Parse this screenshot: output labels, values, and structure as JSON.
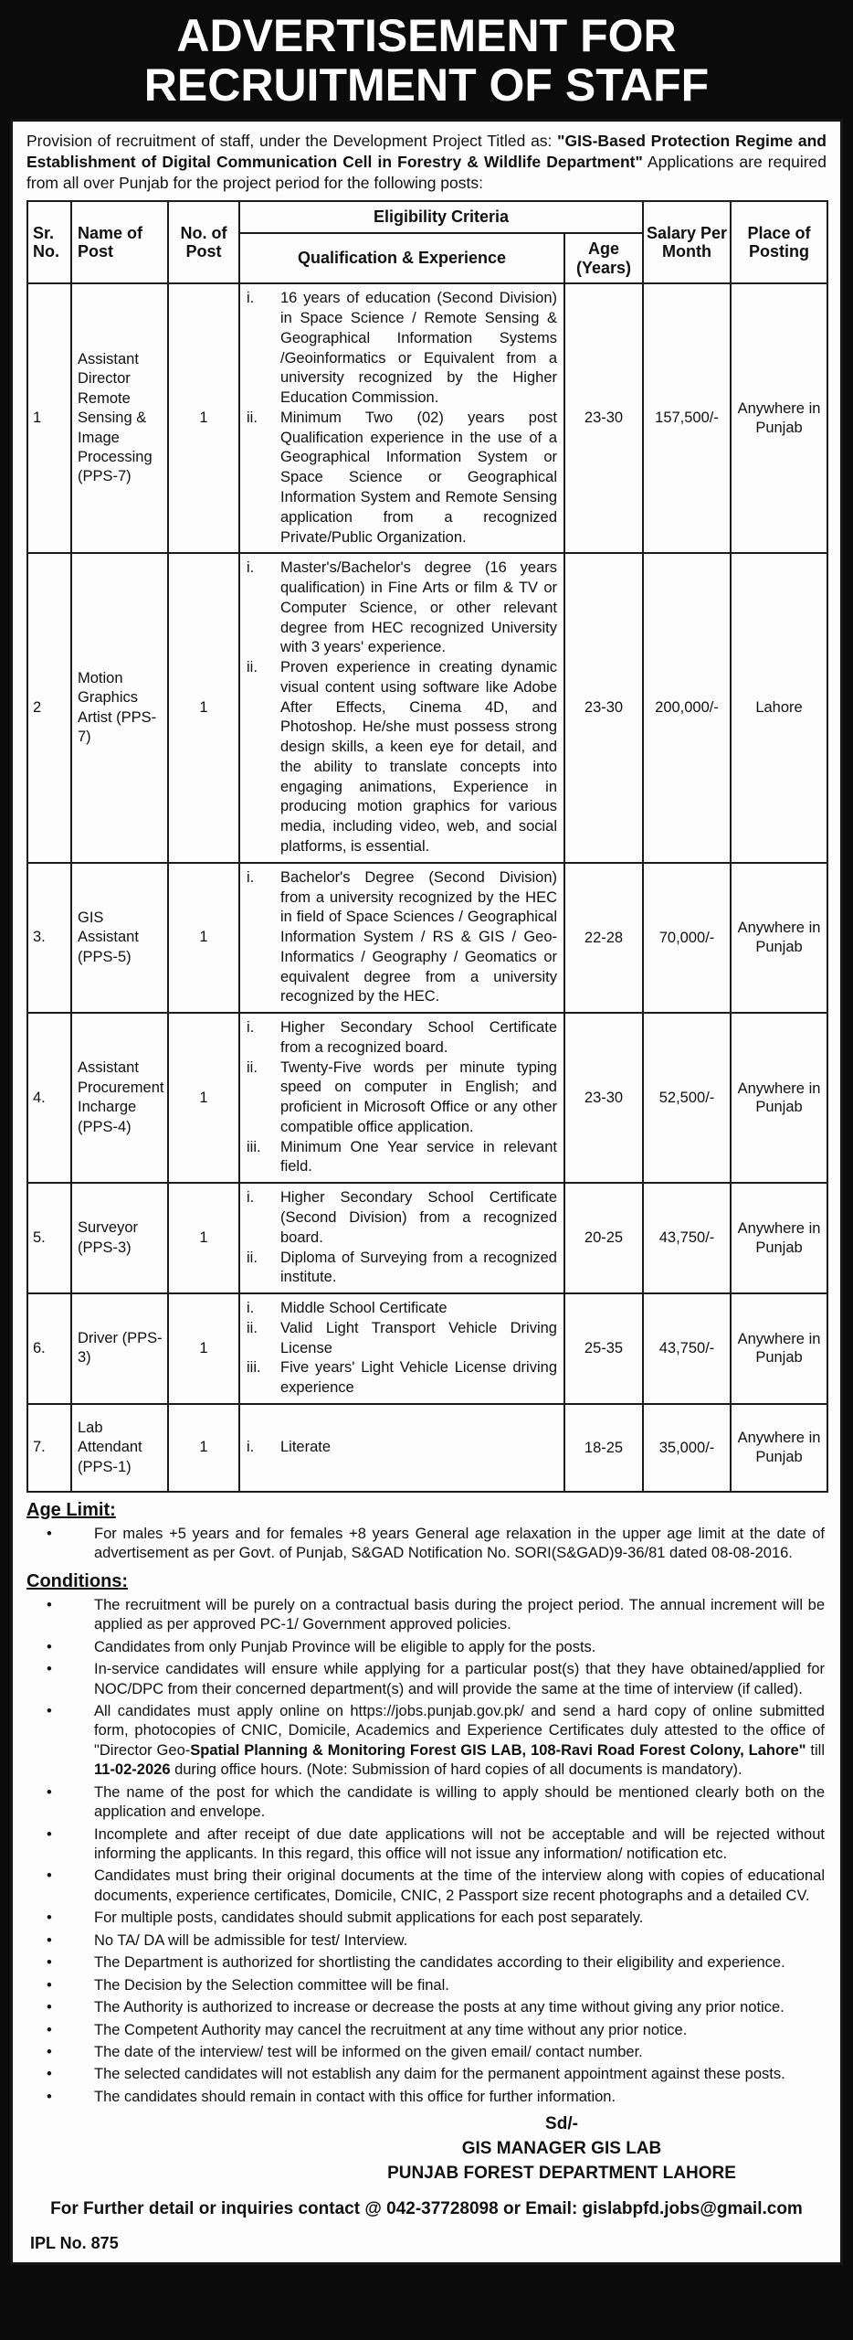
{
  "colors": {
    "band_bg": "#0b0b0b",
    "band_text": "#ffffff",
    "paper_bg": "#fdfdfd",
    "ink": "#101010"
  },
  "bullet_glyph": "•",
  "header": {
    "title_line1": "ADVERTISEMENT FOR",
    "title_line2": "RECRUITMENT OF STAFF"
  },
  "intro": {
    "pre": "Provision of recruitment of staff, under the Development Project Titled as: ",
    "bold_title": "\"GIS-Based Protection Regime and Establishment of Digital Communication Cell in Forestry & Wildlife Department\"",
    "post": " Applications are required from all over Punjab for the project period for the following posts:"
  },
  "table": {
    "headers": {
      "sr": "Sr. No.",
      "name": "Name of Post",
      "count": "No. of Post",
      "eligibility": "Eligibility Criteria",
      "qualification": "Qualification & Experience",
      "age": "Age (Years)",
      "salary": "Salary Per Month",
      "place": "Place of Posting"
    },
    "roman_numerals": [
      "i.",
      "ii.",
      "iii."
    ],
    "rows": [
      {
        "sr": "1",
        "post": "Assistant Director Remote Sensing & Image Processing (PPS-7)",
        "count": "1",
        "qualifications": [
          "16 years of education (Second Division) in Space Science / Remote Sensing & Geographical Information Systems /Geoinformatics or Equivalent from a university recognized by the Higher Education Commission.",
          "Minimum Two (02) years post Qualification experience in the use of a Geographical Information System or Space Science or Geographical Information System and Remote Sensing application from a recognized Private/Public Organization."
        ],
        "age": "23-30",
        "salary": "157,500/-",
        "place": "Anywhere in Punjab"
      },
      {
        "sr": "2",
        "post": "Motion Graphics Artist (PPS-7)",
        "count": "1",
        "qualifications": [
          "Master's/Bachelor's degree (16 years qualification) in Fine Arts or film & TV or Computer Science, or other relevant degree from HEC recognized University with 3 years' experience.",
          "Proven experience in creating dynamic visual content using software like Adobe After Effects, Cinema 4D, and Photoshop. He/she must possess strong design skills, a keen eye for detail, and the ability to translate concepts into engaging animations, Experience in producing motion graphics for various media, including video, web, and social platforms, is essential."
        ],
        "age": "23-30",
        "salary": "200,000/-",
        "place": "Lahore"
      },
      {
        "sr": "3.",
        "post": "GIS Assistant (PPS-5)",
        "count": "1",
        "qualifications": [
          "Bachelor's Degree (Second Division) from a university recognized by the HEC in field of Space Sciences / Geographical Information System / RS & GIS / Geo-Informatics / Geography / Geomatics or equivalent degree from a university recognized by the HEC."
        ],
        "age": "22-28",
        "salary": "70,000/-",
        "place": "Anywhere in Punjab"
      },
      {
        "sr": "4.",
        "post": "Assistant Procurement Incharge (PPS-4)",
        "count": "1",
        "qualifications": [
          "Higher Secondary School Certificate from a recognized board.",
          "Twenty-Five words per minute typing speed on computer in English; and proficient in Microsoft Office or any other compatible office application.",
          "Minimum One Year service in relevant field."
        ],
        "age": "23-30",
        "salary": "52,500/-",
        "place": "Anywhere in Punjab"
      },
      {
        "sr": "5.",
        "post": "Surveyor (PPS-3)",
        "count": "1",
        "qualifications": [
          "Higher Secondary School Certificate (Second Division) from a recognized board.",
          "Diploma of Surveying from a recognized institute."
        ],
        "age": "20-25",
        "salary": "43,750/-",
        "place": "Anywhere in Punjab"
      },
      {
        "sr": "6.",
        "post": "Driver (PPS-3)",
        "count": "1",
        "qualifications": [
          "Middle School Certificate",
          "Valid Light Transport Vehicle Driving License",
          "Five years' Light Vehicle License driving experience"
        ],
        "age": "25-35",
        "salary": "43,750/-",
        "place": "Anywhere in Punjab"
      },
      {
        "sr": "7.",
        "post": "Lab Attendant (PPS-1)",
        "count": "1",
        "qualifications": [
          "Literate"
        ],
        "age": "18-25",
        "salary": "35,000/-",
        "place": "Anywhere in Punjab"
      }
    ]
  },
  "age_limit": {
    "heading": "Age Limit:",
    "items": [
      "For males +5 years and for females +8 years General age relaxation in the upper age limit at the date of advertisement as per Govt. of Punjab, S&GAD Notification No. SORI(S&GAD)9-36/81 dated 08-08-2016."
    ]
  },
  "conditions": {
    "heading": "Conditions:",
    "items": [
      [
        {
          "t": "The recruitment will be purely on a contractual basis during the project period. The annual increment will be applied as per approved PC-1/ Government approved policies."
        }
      ],
      [
        {
          "t": "Candidates from only Punjab Province will be eligible to apply for the posts."
        }
      ],
      [
        {
          "t": "In-service candidates will ensure while applying for a particular post(s) that they have obtained/applied for NOC/DPC from their concerned department(s) and will provide the same at the time of interview (if called)."
        }
      ],
      [
        {
          "t": "All candidates must apply online on https://jobs.punjab.gov.pk/ and send a hard copy of online submitted form, photocopies of CNIC, Domicile, Academics and Experience Certificates duly attested to the office of \"Director Geo-"
        },
        {
          "t": "Spatial Planning & Monitoring Forest GIS LAB, 108-Ravi Road Forest Colony, Lahore\"",
          "b": true
        },
        {
          "t": " till "
        },
        {
          "t": "11-02-2026",
          "b": true
        },
        {
          "t": " during office hours. (Note: Submission of hard copies of all documents is mandatory)."
        }
      ],
      [
        {
          "t": "The name of the post for which the candidate is willing to apply should be mentioned clearly both on the application and envelope."
        }
      ],
      [
        {
          "t": "Incomplete and after receipt of due date applications will not be acceptable and will be rejected without informing the applicants. In this regard, this office will not issue any information/ notification etc."
        }
      ],
      [
        {
          "t": "Candidates must bring their original documents at the time of the interview along with copies of educational documents, experience certificates, Domicile, CNIC, 2 Passport size recent photographs and a detailed CV."
        }
      ],
      [
        {
          "t": "For multiple posts, candidates should submit applications for each post separately."
        }
      ],
      [
        {
          "t": "No TA/ DA will be admissible for test/ Interview."
        }
      ],
      [
        {
          "t": "The Department is authorized for shortlisting the candidates according to their eligibility and experience."
        }
      ],
      [
        {
          "t": "The Decision by the Selection committee will be final."
        }
      ],
      [
        {
          "t": "The Authority is authorized to increase or decrease the posts at any time without giving any prior notice."
        }
      ],
      [
        {
          "t": "The Competent Authority may cancel the recruitment at any time without any prior notice."
        }
      ],
      [
        {
          "t": "The date of the interview/ test will be informed on the given email/ contact number."
        }
      ],
      [
        {
          "t": "The selected candidates will not establish any daim for the permanent appointment against these posts."
        }
      ],
      [
        {
          "t": "The candidates should remain in contact with this office for further information."
        }
      ]
    ]
  },
  "signature": {
    "sd": "Sd/-",
    "line1": "GIS MANAGER GIS LAB",
    "line2": "PUNJAB FOREST DEPARTMENT LAHORE"
  },
  "footer": {
    "contact": "For Further detail or inquiries contact @ 042-37728098 or Email: gislabpfd.jobs@gmail.com",
    "ipl": "IPL No. 875"
  }
}
